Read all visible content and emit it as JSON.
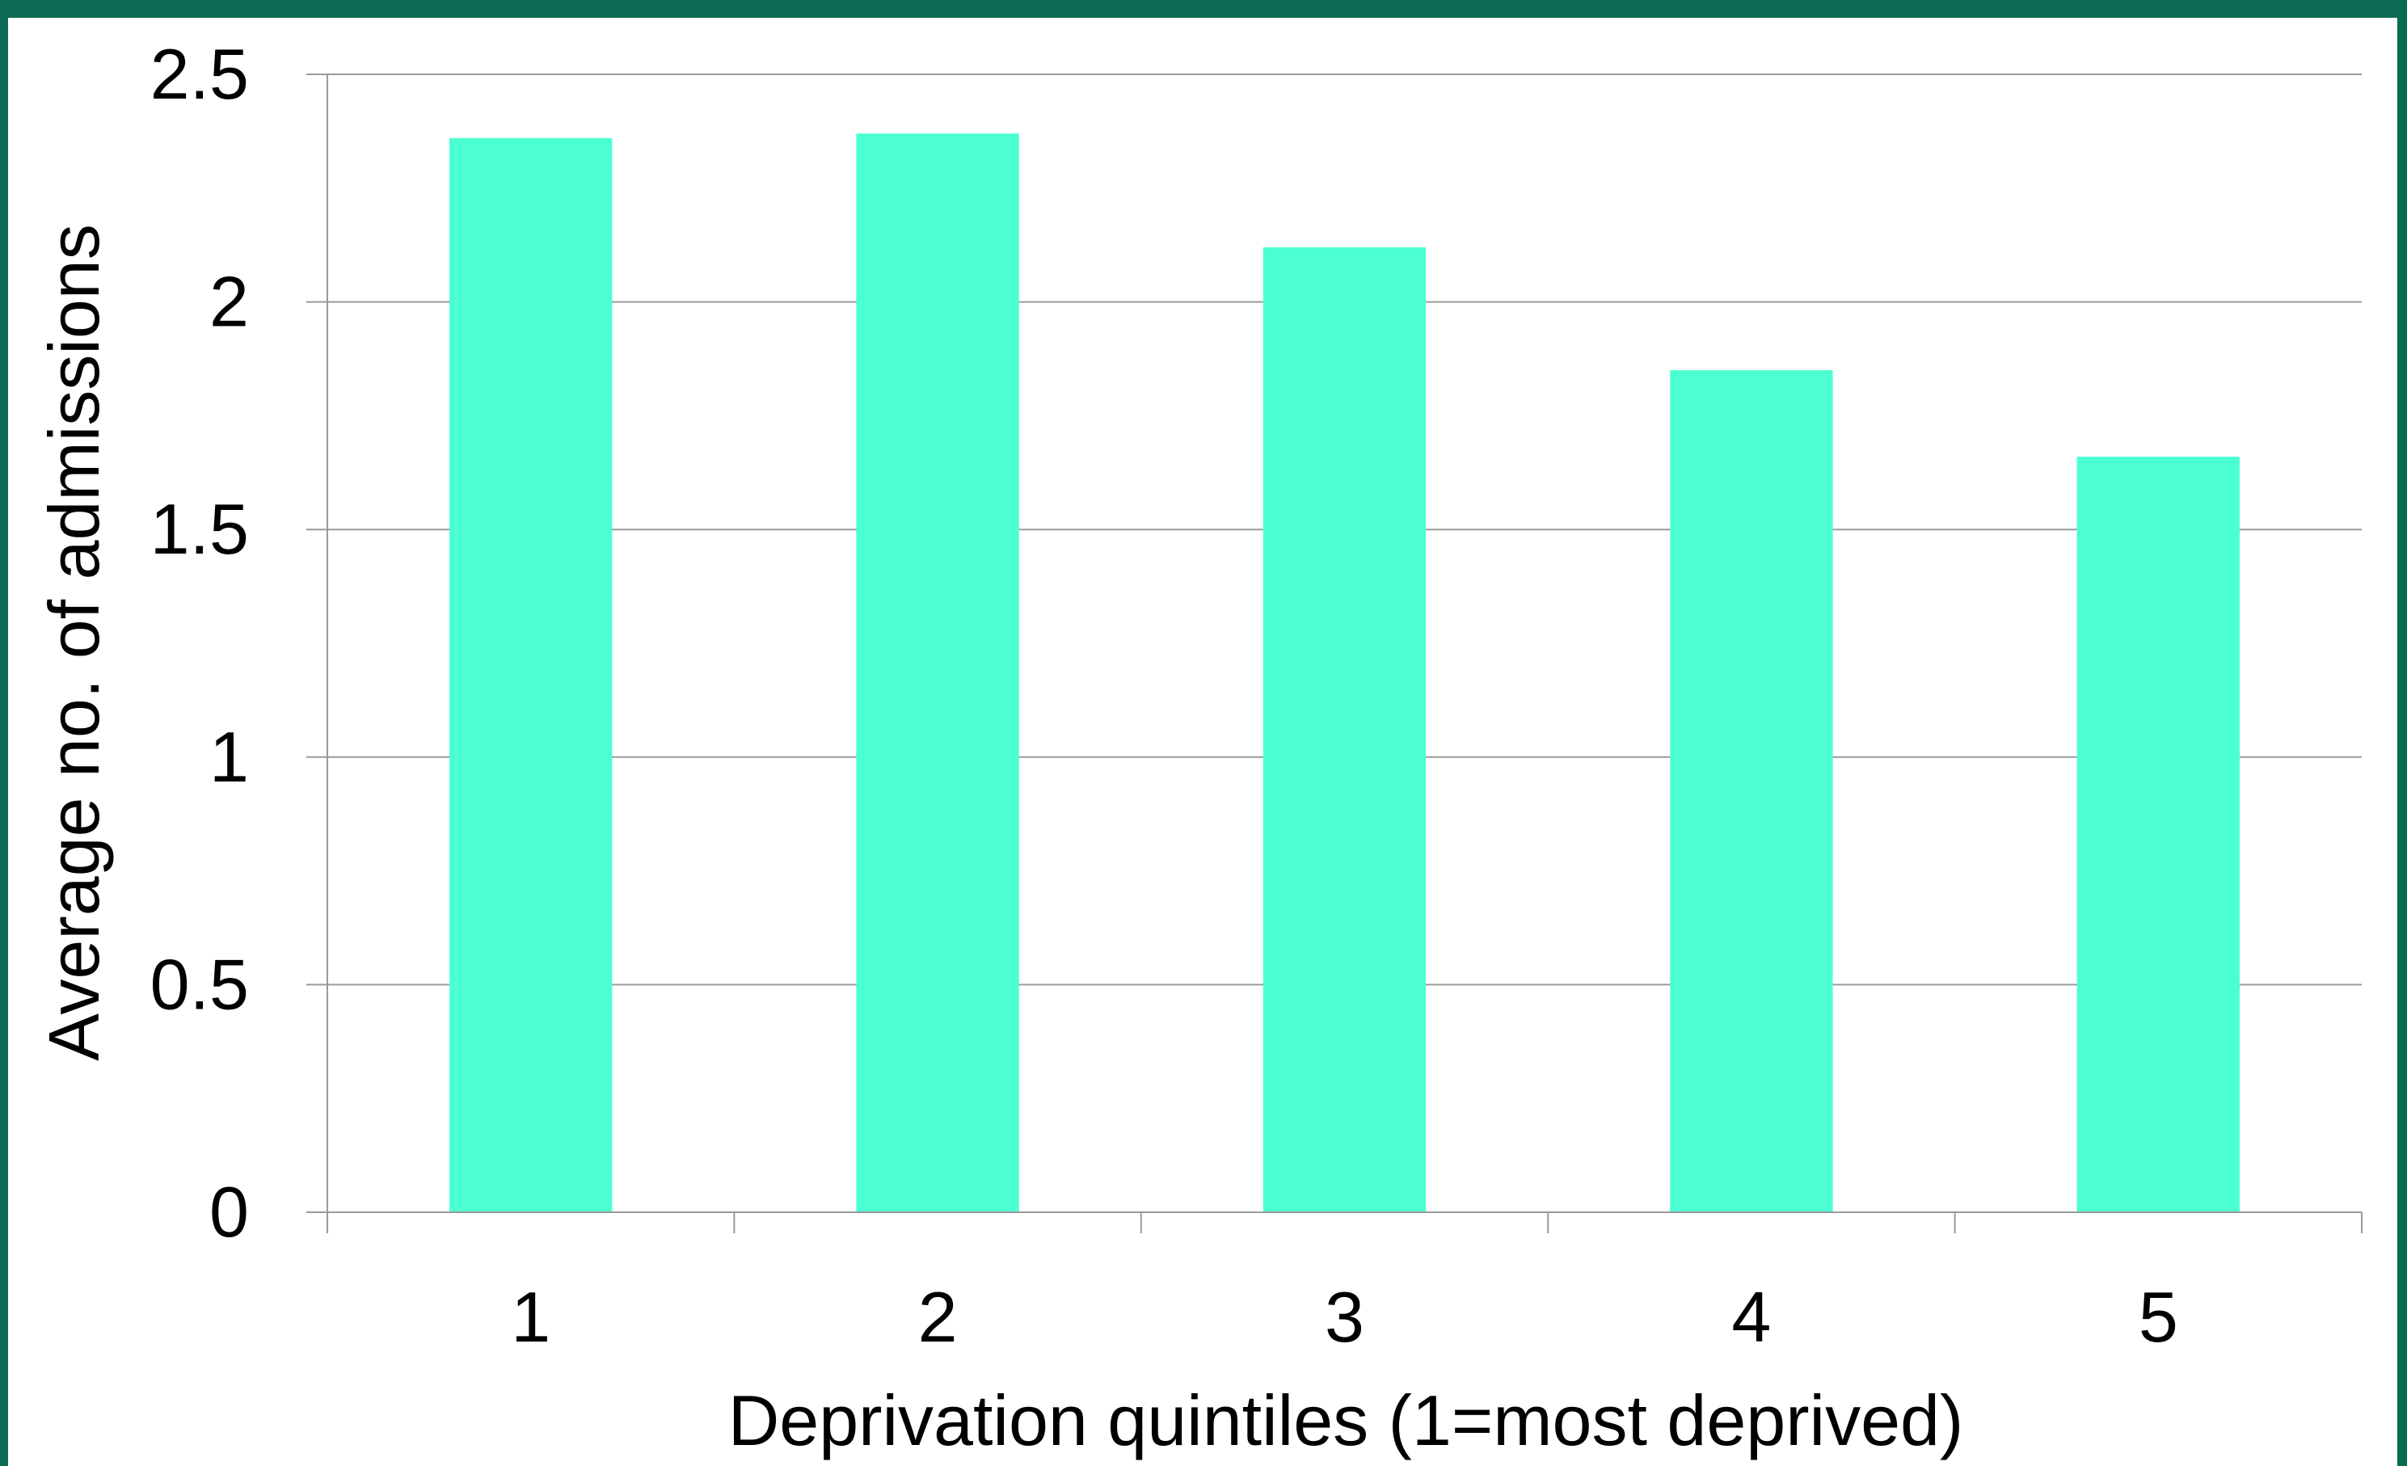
{
  "colors": {
    "frame": "#0a6b52",
    "bar": "#4cffd2",
    "grid": "#9a9a9a"
  },
  "chart_data": {
    "type": "bar",
    "title": "",
    "xlabel": "Deprivation quintiles (1=most deprived)",
    "ylabel": "Average no. of admissions",
    "categories": [
      "1",
      "2",
      "3",
      "4",
      "5"
    ],
    "values": [
      2.36,
      2.37,
      2.12,
      1.85,
      1.66
    ],
    "ylim": [
      0,
      2.5
    ],
    "yticks": [
      "0",
      "0.5",
      "1",
      "1.5",
      "2",
      "2.5"
    ],
    "grid": true,
    "legend": "none"
  }
}
